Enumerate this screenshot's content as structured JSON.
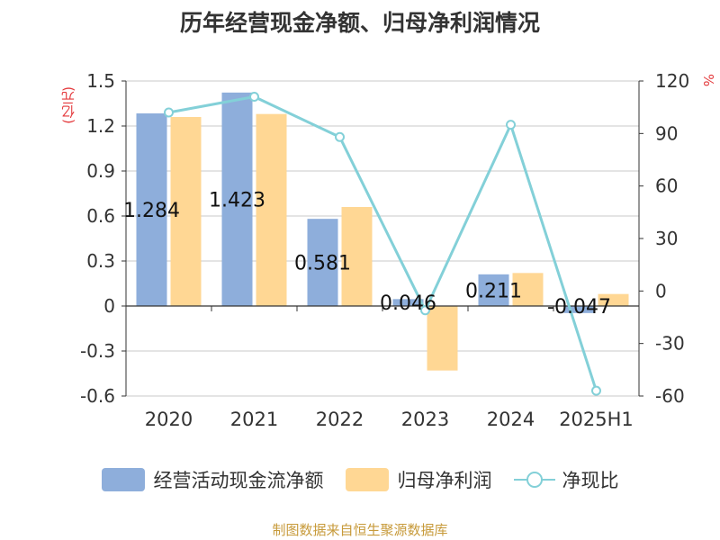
{
  "chart_data": {
    "type": "bar",
    "title": "历年经营现金净额、归母净利润情况",
    "categories": [
      "2020",
      "2021",
      "2022",
      "2023",
      "2024",
      "2025H1"
    ],
    "series": [
      {
        "name": "经营活动现金流净额",
        "type": "bar",
        "axis": "left",
        "color": "#8eaedb",
        "values": [
          1.284,
          1.423,
          0.581,
          0.046,
          0.211,
          -0.047
        ],
        "labels": [
          "1.284",
          "1.423",
          "0.581",
          "0.046",
          "0.211",
          "-0.047"
        ]
      },
      {
        "name": "归母净利润",
        "type": "bar",
        "axis": "left",
        "color": "#ffd794",
        "values": [
          1.26,
          1.28,
          0.66,
          -0.43,
          0.22,
          0.08
        ]
      },
      {
        "name": "净现比",
        "type": "line",
        "axis": "right",
        "color": "#83d0d8",
        "values": [
          102,
          111,
          88,
          -11,
          95,
          -57
        ]
      }
    ],
    "y_left": {
      "unit": "(亿元)",
      "min": -0.6,
      "max": 1.5,
      "ticks": [
        "1.5",
        "1.2",
        "0.9",
        "0.6",
        "0.3",
        "0",
        "-0.3",
        "-0.6"
      ]
    },
    "y_right": {
      "unit": "%",
      "min": -60,
      "max": 120,
      "ticks": [
        "120",
        "90",
        "60",
        "30",
        "0",
        "-30",
        "-60"
      ]
    },
    "grid": true,
    "legend": "bottom"
  },
  "source": "制图数据来自恒生聚源数据库"
}
